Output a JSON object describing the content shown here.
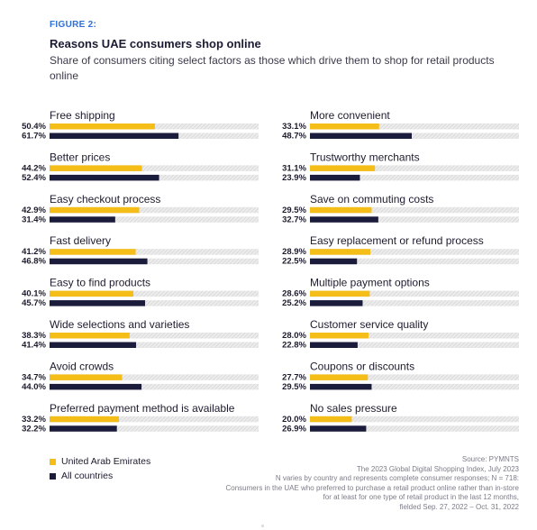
{
  "figure_label": "FIGURE 2:",
  "title": "Reasons UAE consumers shop online",
  "subtitle": "Share of consumers citing select factors as those which drive them to shop for retail products online",
  "legend": {
    "uae": "United Arab Emirates",
    "all": "All countries"
  },
  "source_lines": [
    "Source: PYMNTS",
    "The 2023 Global Digital Shopping Index, July 2023",
    "N varies by country and represents complete consumer responses; N = 718:",
    "Consumers in the UAE who preferred to purchase a retail product online rather than in-store",
    "for at least for one type of retail product in the last 12 months,",
    "fielded Sep. 27, 2022 – Oct. 31, 2022"
  ],
  "colors": {
    "uae": "#f5bd18",
    "all": "#1b1c3c",
    "track": "#e4e4e4",
    "accent": "#2e6fd8"
  },
  "chart_data": {
    "type": "bar",
    "orientation": "horizontal",
    "xlim": [
      0,
      100
    ],
    "unit": "%",
    "series": [
      {
        "name": "United Arab Emirates"
      },
      {
        "name": "All countries"
      }
    ],
    "panels": [
      {
        "categories": [
          "Free shipping",
          "Better prices",
          "Easy checkout process",
          "Fast delivery",
          "Easy to find products",
          "Wide selections and varieties",
          "Avoid crowds",
          "Preferred payment method is available"
        ],
        "uae": [
          50.4,
          44.2,
          42.9,
          41.2,
          40.1,
          38.3,
          34.7,
          33.2
        ],
        "all": [
          61.7,
          52.4,
          31.4,
          46.8,
          45.7,
          41.4,
          44.0,
          32.2
        ],
        "uae_labels": [
          "50.4%",
          "44.2%",
          "42.9%",
          "41.2%",
          "40.1%",
          "38.3%",
          "34.7%",
          "33.2%"
        ],
        "all_labels": [
          "61.7%",
          "52.4%",
          "31.4%",
          "46.8%",
          "45.7%",
          "41.4%",
          "44.0%",
          "32.2%"
        ]
      },
      {
        "categories": [
          "More convenient",
          "Trustworthy merchants",
          "Save on commuting costs",
          "Easy replacement or refund process",
          "Multiple payment options",
          "Customer service quality",
          "Coupons or discounts",
          "No sales pressure"
        ],
        "uae": [
          33.1,
          31.1,
          29.5,
          28.9,
          28.6,
          28.0,
          27.7,
          20.0
        ],
        "all": [
          48.7,
          23.9,
          32.7,
          22.5,
          25.2,
          22.8,
          29.5,
          26.9
        ],
        "uae_labels": [
          "33.1%",
          "31.1%",
          "29.5%",
          "28.9%",
          "28.6%",
          "28.0%",
          "27.7%",
          "20.0%"
        ],
        "all_labels": [
          "48.7%",
          "23.9%",
          "32.7%",
          "22.5%",
          "25.2%",
          "22.8%",
          "29.5%",
          "26.9%"
        ]
      }
    ]
  }
}
